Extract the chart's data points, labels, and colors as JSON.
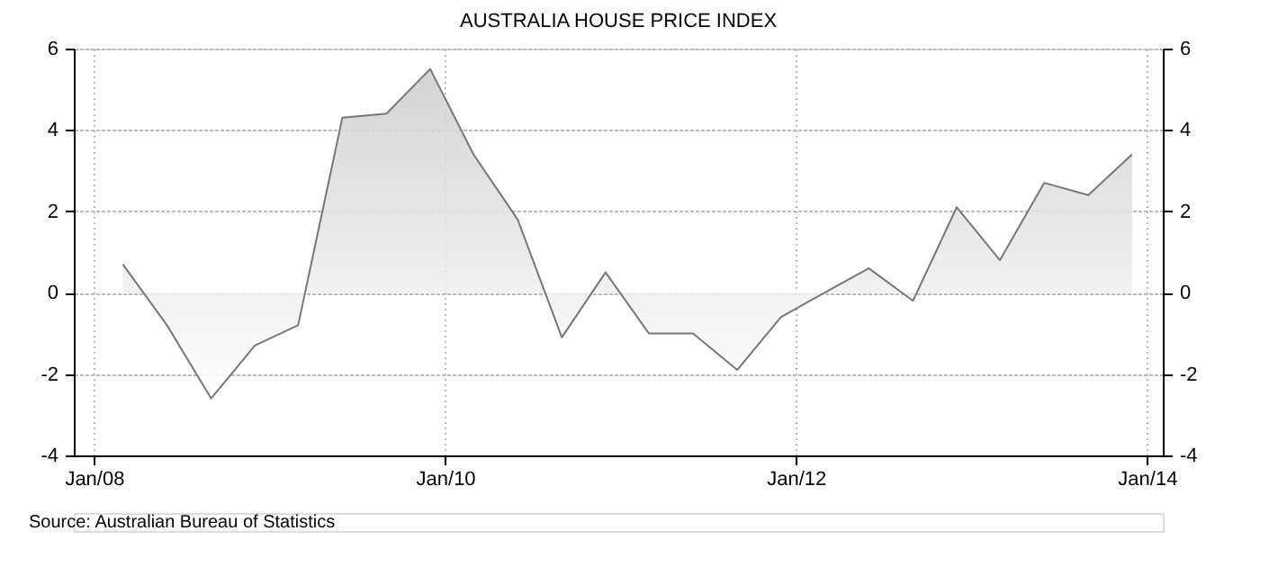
{
  "chart_data": {
    "type": "area",
    "title": "AUSTRALIA HOUSE PRICE INDEX",
    "x": [
      "2008-03",
      "2008-06",
      "2008-09",
      "2008-12",
      "2009-03",
      "2009-06",
      "2009-09",
      "2009-12",
      "2010-03",
      "2010-06",
      "2010-09",
      "2010-12",
      "2011-03",
      "2011-06",
      "2011-09",
      "2011-12",
      "2012-03",
      "2012-06",
      "2012-09",
      "2012-12",
      "2013-03",
      "2013-06",
      "2013-09",
      "2013-12"
    ],
    "series": [
      {
        "color": "#777777",
        "values": [
          0.7,
          -0.8,
          -2.6,
          -1.3,
          -0.8,
          4.3,
          4.4,
          5.5,
          3.4,
          1.8,
          -1.1,
          0.5,
          -1.0,
          -1.0,
          -1.9,
          -0.6,
          0.0,
          0.6,
          -0.2,
          2.1,
          0.8,
          2.7,
          2.4,
          3.4
        ]
      }
    ],
    "xlim": [
      "2007-11-20",
      "2014-02-03"
    ],
    "xticks": [
      {
        "value": "2008-01",
        "label": "Jan/08"
      },
      {
        "value": "2010-01",
        "label": "Jan/10"
      },
      {
        "value": "2012-01",
        "label": "Jan/12"
      },
      {
        "value": "2014-01",
        "label": "Jan/14"
      }
    ],
    "ylim": [
      -4,
      6
    ],
    "yticks": [
      -4,
      -2,
      0,
      2,
      4,
      6
    ],
    "y2lim": [
      -4,
      6
    ],
    "y2ticks": [
      -4,
      -2,
      0,
      2,
      4,
      6
    ],
    "grid": true,
    "annotations": [
      "Source: Australian Bureau of Statistics"
    ]
  }
}
